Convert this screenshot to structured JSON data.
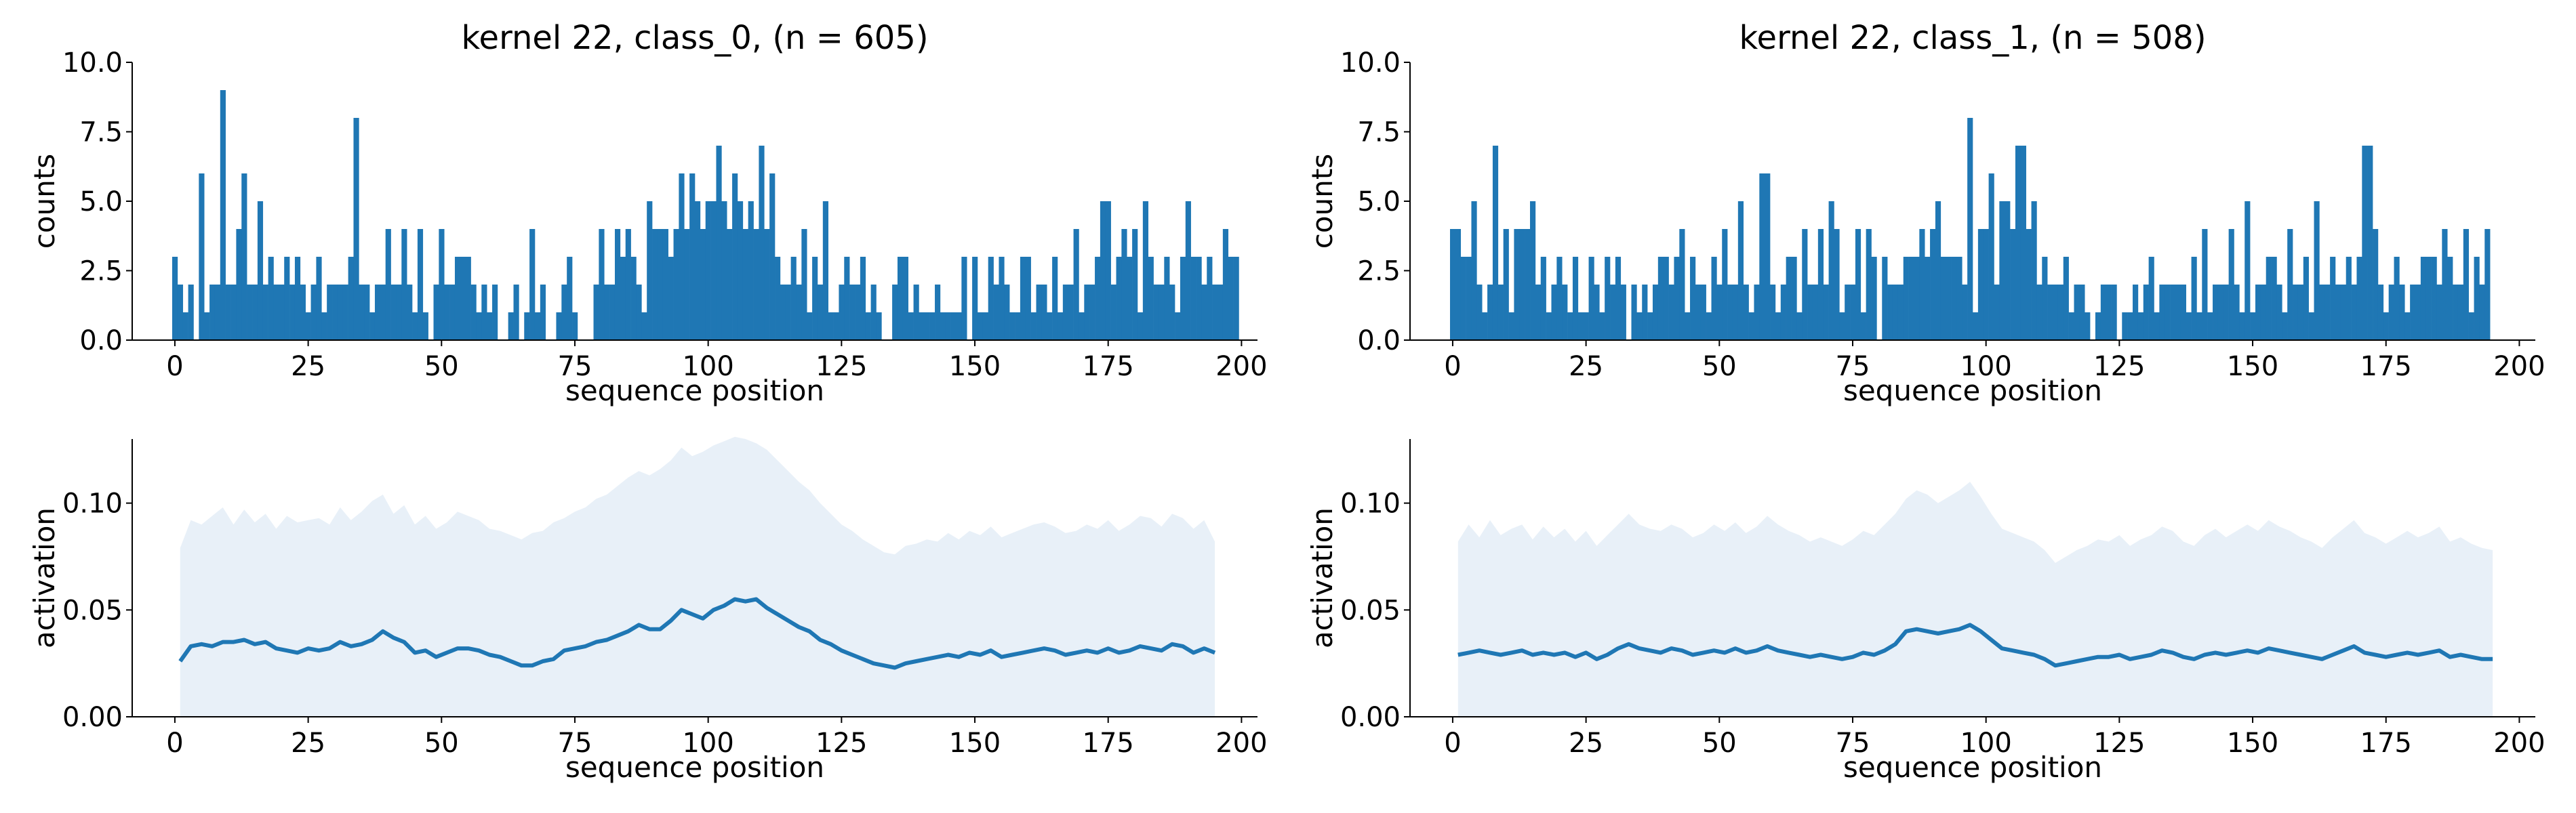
{
  "chart_data": [
    {
      "type": "bar",
      "title": "kernel 22, class_0, (n = 605)",
      "xlabel": "sequence position",
      "ylabel": "counts",
      "xlim": [
        -8,
        203
      ],
      "ylim": [
        0,
        10
      ],
      "xticks": [
        "0",
        "25",
        "50",
        "75",
        "100",
        "125",
        "150",
        "175",
        "200"
      ],
      "yticks": [
        "0.0",
        "2.5",
        "5.0",
        "7.5",
        "10.0"
      ],
      "color": "#1f77b4",
      "x_start": 0,
      "values": [
        3,
        2,
        1,
        2,
        0,
        6,
        1,
        2,
        2,
        9,
        2,
        2,
        4,
        6,
        2,
        2,
        5,
        2,
        3,
        2,
        2,
        3,
        2,
        3,
        2,
        1,
        2,
        3,
        1,
        2,
        2,
        2,
        2,
        3,
        8,
        2,
        2,
        1,
        2,
        2,
        4,
        2,
        2,
        4,
        2,
        1,
        4,
        1,
        0,
        2,
        4,
        2,
        2,
        3,
        3,
        3,
        2,
        1,
        2,
        1,
        2,
        0,
        0,
        1,
        2,
        0,
        1,
        4,
        1,
        2,
        0,
        0,
        1,
        2,
        3,
        1,
        0,
        0,
        0,
        2,
        4,
        2,
        2,
        4,
        3,
        4,
        3,
        2,
        1,
        5,
        4,
        4,
        4,
        3,
        4,
        6,
        4,
        6,
        5,
        4,
        5,
        5,
        7,
        5,
        4,
        6,
        5,
        4,
        5,
        4,
        7,
        4,
        6,
        3,
        2,
        2,
        3,
        2,
        4,
        1,
        3,
        2,
        5,
        1,
        1,
        2,
        3,
        2,
        2,
        3,
        1,
        2,
        1,
        0,
        0,
        2,
        3,
        3,
        1,
        2,
        1,
        1,
        1,
        2,
        1,
        1,
        1,
        1,
        3,
        0,
        3,
        1,
        1,
        3,
        2,
        3,
        2,
        1,
        1,
        3,
        3,
        1,
        2,
        2,
        1,
        3,
        1,
        2,
        2,
        4,
        1,
        2,
        2,
        3,
        5,
        5,
        2,
        3,
        4,
        3,
        4,
        1,
        5,
        3,
        2,
        2,
        3,
        2,
        1,
        3,
        5,
        3,
        3,
        2,
        3,
        2,
        2,
        4,
        3,
        3
      ]
    },
    {
      "type": "bar",
      "title": "kernel 22, class_1, (n = 508)",
      "xlabel": "sequence position",
      "ylabel": "counts",
      "xlim": [
        -8,
        203
      ],
      "ylim": [
        0,
        10
      ],
      "xticks": [
        "0",
        "25",
        "50",
        "75",
        "100",
        "125",
        "150",
        "175",
        "200"
      ],
      "yticks": [
        "0.0",
        "2.5",
        "5.0",
        "7.5",
        "10.0"
      ],
      "color": "#1f77b4",
      "x_start": 0,
      "values": [
        4,
        4,
        3,
        3,
        5,
        2,
        1,
        2,
        7,
        2,
        4,
        1,
        4,
        4,
        4,
        5,
        2,
        3,
        1,
        2,
        3,
        2,
        1,
        3,
        1,
        1,
        3,
        2,
        1,
        3,
        2,
        3,
        2,
        0,
        2,
        1,
        2,
        1,
        2,
        3,
        3,
        2,
        3,
        4,
        1,
        3,
        2,
        2,
        1,
        3,
        2,
        4,
        2,
        2,
        5,
        2,
        1,
        2,
        6,
        6,
        2,
        1,
        2,
        3,
        3,
        1,
        4,
        2,
        2,
        4,
        2,
        5,
        4,
        1,
        2,
        2,
        4,
        1,
        4,
        3,
        0,
        3,
        2,
        2,
        2,
        3,
        3,
        3,
        4,
        3,
        4,
        5,
        3,
        3,
        3,
        3,
        2,
        8,
        1,
        4,
        4,
        6,
        2,
        5,
        5,
        4,
        7,
        7,
        4,
        5,
        2,
        3,
        2,
        2,
        2,
        3,
        1,
        2,
        2,
        1,
        0,
        1,
        2,
        2,
        2,
        0,
        1,
        1,
        2,
        1,
        2,
        3,
        1,
        2,
        2,
        2,
        2,
        2,
        1,
        3,
        1,
        4,
        1,
        2,
        2,
        2,
        4,
        2,
        1,
        5,
        1,
        2,
        2,
        3,
        3,
        2,
        1,
        4,
        2,
        2,
        3,
        1,
        5,
        2,
        2,
        3,
        2,
        2,
        3,
        2,
        3,
        7,
        7,
        4,
        2,
        1,
        2,
        3,
        2,
        1,
        2,
        2,
        3,
        3,
        3,
        2,
        4,
        3,
        2,
        2,
        4,
        1,
        3,
        2,
        4
      ]
    },
    {
      "type": "area",
      "title": "",
      "xlabel": "sequence position",
      "ylabel": "activation",
      "xlim": [
        -8,
        203
      ],
      "ylim": [
        0,
        0.13
      ],
      "xticks": [
        "0",
        "25",
        "50",
        "75",
        "100",
        "125",
        "150",
        "175",
        "200"
      ],
      "yticks": [
        "0.00",
        "0.05",
        "0.10"
      ],
      "line_color": "#1f77b4",
      "band_color": "#e8f0f8",
      "x_start": 1,
      "x_step": 2,
      "mean": [
        0.026,
        0.033,
        0.034,
        0.033,
        0.035,
        0.035,
        0.036,
        0.034,
        0.035,
        0.032,
        0.031,
        0.03,
        0.032,
        0.031,
        0.032,
        0.035,
        0.033,
        0.034,
        0.036,
        0.04,
        0.037,
        0.035,
        0.03,
        0.031,
        0.028,
        0.03,
        0.032,
        0.032,
        0.031,
        0.029,
        0.028,
        0.026,
        0.024,
        0.024,
        0.026,
        0.027,
        0.031,
        0.032,
        0.033,
        0.035,
        0.036,
        0.038,
        0.04,
        0.043,
        0.041,
        0.041,
        0.045,
        0.05,
        0.048,
        0.046,
        0.05,
        0.052,
        0.055,
        0.054,
        0.055,
        0.051,
        0.048,
        0.045,
        0.042,
        0.04,
        0.036,
        0.034,
        0.031,
        0.029,
        0.027,
        0.025,
        0.024,
        0.023,
        0.025,
        0.026,
        0.027,
        0.028,
        0.029,
        0.028,
        0.03,
        0.029,
        0.031,
        0.028,
        0.029,
        0.03,
        0.031,
        0.032,
        0.031,
        0.029,
        0.03,
        0.031,
        0.03,
        0.032,
        0.03,
        0.031,
        0.033,
        0.032,
        0.031,
        0.034,
        0.033,
        0.03,
        0.032,
        0.03
      ],
      "upper": [
        0.079,
        0.092,
        0.09,
        0.094,
        0.098,
        0.09,
        0.097,
        0.091,
        0.095,
        0.088,
        0.094,
        0.091,
        0.092,
        0.093,
        0.09,
        0.098,
        0.092,
        0.096,
        0.101,
        0.104,
        0.095,
        0.099,
        0.09,
        0.094,
        0.088,
        0.091,
        0.096,
        0.094,
        0.092,
        0.088,
        0.087,
        0.085,
        0.083,
        0.086,
        0.087,
        0.091,
        0.093,
        0.096,
        0.098,
        0.102,
        0.104,
        0.108,
        0.112,
        0.115,
        0.113,
        0.116,
        0.12,
        0.126,
        0.122,
        0.124,
        0.127,
        0.129,
        0.131,
        0.13,
        0.128,
        0.125,
        0.12,
        0.115,
        0.11,
        0.106,
        0.1,
        0.095,
        0.09,
        0.087,
        0.083,
        0.08,
        0.077,
        0.076,
        0.08,
        0.081,
        0.083,
        0.082,
        0.086,
        0.083,
        0.087,
        0.085,
        0.089,
        0.084,
        0.086,
        0.088,
        0.09,
        0.091,
        0.089,
        0.086,
        0.087,
        0.09,
        0.088,
        0.092,
        0.087,
        0.09,
        0.094,
        0.093,
        0.089,
        0.095,
        0.093,
        0.088,
        0.092,
        0.082
      ]
    },
    {
      "type": "area",
      "title": "",
      "xlabel": "sequence position",
      "ylabel": "activation",
      "xlim": [
        -8,
        203
      ],
      "ylim": [
        0,
        0.13
      ],
      "xticks": [
        "0",
        "25",
        "50",
        "75",
        "100",
        "125",
        "150",
        "175",
        "200"
      ],
      "yticks": [
        "0.00",
        "0.05",
        "0.10"
      ],
      "line_color": "#1f77b4",
      "band_color": "#e8f0f8",
      "x_start": 1,
      "x_step": 2,
      "mean": [
        0.029,
        0.03,
        0.031,
        0.03,
        0.029,
        0.03,
        0.031,
        0.029,
        0.03,
        0.029,
        0.03,
        0.028,
        0.03,
        0.027,
        0.029,
        0.032,
        0.034,
        0.032,
        0.031,
        0.03,
        0.032,
        0.031,
        0.029,
        0.03,
        0.031,
        0.03,
        0.032,
        0.03,
        0.031,
        0.033,
        0.031,
        0.03,
        0.029,
        0.028,
        0.029,
        0.028,
        0.027,
        0.028,
        0.03,
        0.029,
        0.031,
        0.034,
        0.04,
        0.041,
        0.04,
        0.039,
        0.04,
        0.041,
        0.043,
        0.04,
        0.036,
        0.032,
        0.031,
        0.03,
        0.029,
        0.027,
        0.024,
        0.025,
        0.026,
        0.027,
        0.028,
        0.028,
        0.029,
        0.027,
        0.028,
        0.029,
        0.031,
        0.03,
        0.028,
        0.027,
        0.029,
        0.03,
        0.029,
        0.03,
        0.031,
        0.03,
        0.032,
        0.031,
        0.03,
        0.029,
        0.028,
        0.027,
        0.029,
        0.031,
        0.033,
        0.03,
        0.029,
        0.028,
        0.029,
        0.03,
        0.029,
        0.03,
        0.031,
        0.028,
        0.029,
        0.028,
        0.027,
        0.027
      ],
      "upper": [
        0.082,
        0.09,
        0.084,
        0.092,
        0.085,
        0.088,
        0.09,
        0.083,
        0.089,
        0.084,
        0.088,
        0.082,
        0.087,
        0.08,
        0.085,
        0.09,
        0.095,
        0.09,
        0.088,
        0.087,
        0.09,
        0.088,
        0.084,
        0.086,
        0.09,
        0.087,
        0.091,
        0.086,
        0.089,
        0.094,
        0.09,
        0.087,
        0.085,
        0.082,
        0.084,
        0.082,
        0.08,
        0.083,
        0.087,
        0.085,
        0.09,
        0.095,
        0.102,
        0.106,
        0.104,
        0.1,
        0.103,
        0.106,
        0.11,
        0.103,
        0.095,
        0.088,
        0.086,
        0.084,
        0.082,
        0.078,
        0.072,
        0.075,
        0.078,
        0.08,
        0.083,
        0.082,
        0.085,
        0.08,
        0.083,
        0.085,
        0.089,
        0.087,
        0.082,
        0.08,
        0.085,
        0.088,
        0.084,
        0.087,
        0.09,
        0.087,
        0.092,
        0.089,
        0.087,
        0.084,
        0.082,
        0.079,
        0.084,
        0.088,
        0.092,
        0.086,
        0.084,
        0.081,
        0.084,
        0.087,
        0.084,
        0.086,
        0.089,
        0.082,
        0.084,
        0.081,
        0.079,
        0.078
      ]
    }
  ]
}
